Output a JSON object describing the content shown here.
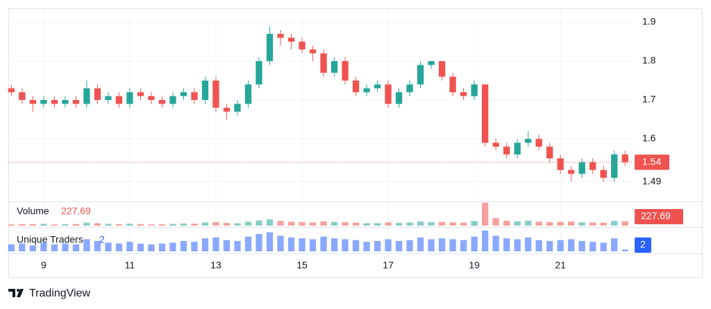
{
  "chart_data": {
    "type": "candlestick",
    "x": [
      8.25,
      8.5,
      8.75,
      9,
      9.25,
      9.5,
      9.75,
      10,
      10.25,
      10.5,
      10.75,
      11,
      11.25,
      11.5,
      11.75,
      12,
      12.25,
      12.5,
      12.75,
      13,
      13.25,
      13.5,
      13.75,
      14,
      14.25,
      14.5,
      14.75,
      15,
      15.25,
      15.5,
      15.75,
      16,
      16.25,
      16.5,
      16.75,
      17,
      17.25,
      17.5,
      17.75,
      18,
      18.25,
      18.5,
      18.75,
      19,
      19.25,
      19.5,
      19.75,
      20,
      20.25,
      20.5,
      20.75,
      21,
      21.25,
      21.5,
      21.75,
      22,
      22.25,
      22.5
    ],
    "open": [
      1.73,
      1.72,
      1.7,
      1.69,
      1.7,
      1.69,
      1.7,
      1.69,
      1.73,
      1.7,
      1.71,
      1.69,
      1.72,
      1.71,
      1.7,
      1.69,
      1.71,
      1.72,
      1.7,
      1.75,
      1.68,
      1.67,
      1.69,
      1.74,
      1.8,
      1.87,
      1.86,
      1.85,
      1.83,
      1.82,
      1.77,
      1.8,
      1.75,
      1.72,
      1.73,
      1.74,
      1.69,
      1.72,
      1.74,
      1.79,
      1.8,
      1.76,
      1.72,
      1.71,
      1.74,
      1.59,
      1.58,
      1.56,
      1.59,
      1.6,
      1.58,
      1.55,
      1.52,
      1.51,
      1.54,
      1.52,
      1.5,
      1.56
    ],
    "high": [
      1.74,
      1.73,
      1.71,
      1.71,
      1.71,
      1.71,
      1.71,
      1.75,
      1.74,
      1.72,
      1.72,
      1.73,
      1.73,
      1.72,
      1.71,
      1.72,
      1.73,
      1.73,
      1.76,
      1.76,
      1.69,
      1.7,
      1.75,
      1.81,
      1.89,
      1.88,
      1.87,
      1.86,
      1.84,
      1.83,
      1.81,
      1.81,
      1.76,
      1.74,
      1.75,
      1.75,
      1.73,
      1.75,
      1.8,
      1.8,
      1.8,
      1.77,
      1.73,
      1.75,
      1.74,
      1.6,
      1.59,
      1.6,
      1.62,
      1.61,
      1.59,
      1.56,
      1.53,
      1.55,
      1.55,
      1.53,
      1.57,
      1.57
    ],
    "low": [
      1.71,
      1.69,
      1.67,
      1.68,
      1.68,
      1.68,
      1.68,
      1.68,
      1.69,
      1.69,
      1.68,
      1.68,
      1.7,
      1.69,
      1.68,
      1.68,
      1.7,
      1.69,
      1.69,
      1.67,
      1.65,
      1.66,
      1.68,
      1.73,
      1.79,
      1.84,
      1.83,
      1.82,
      1.8,
      1.76,
      1.76,
      1.74,
      1.71,
      1.71,
      1.72,
      1.68,
      1.68,
      1.71,
      1.73,
      1.78,
      1.75,
      1.71,
      1.7,
      1.7,
      1.58,
      1.57,
      1.55,
      1.55,
      1.58,
      1.57,
      1.54,
      1.51,
      1.49,
      1.5,
      1.51,
      1.49,
      1.49,
      1.53
    ],
    "close": [
      1.72,
      1.7,
      1.69,
      1.7,
      1.69,
      1.7,
      1.69,
      1.73,
      1.7,
      1.71,
      1.69,
      1.72,
      1.71,
      1.7,
      1.69,
      1.71,
      1.72,
      1.7,
      1.75,
      1.68,
      1.67,
      1.69,
      1.74,
      1.8,
      1.87,
      1.86,
      1.85,
      1.83,
      1.82,
      1.77,
      1.8,
      1.75,
      1.72,
      1.73,
      1.74,
      1.69,
      1.72,
      1.74,
      1.79,
      1.8,
      1.76,
      1.72,
      1.71,
      1.74,
      1.59,
      1.58,
      1.56,
      1.59,
      1.6,
      1.58,
      1.55,
      1.52,
      1.51,
      1.54,
      1.52,
      1.5,
      1.56,
      1.54
    ],
    "up_color": "#26a69a",
    "down_color": "#ef5350",
    "xlim": [
      8.18,
      22.69
    ],
    "xticks": [
      9,
      11,
      13,
      15,
      17,
      19,
      21
    ],
    "ylim": [
      1.4393,
      1.9357
    ],
    "yticks": [
      1.9,
      1.8,
      1.7,
      1.6,
      1.49
    ],
    "grid": true,
    "last_price": 1.54,
    "volume": {
      "name": "Volume",
      "color": "#ef5350",
      "values": [
        60,
        80,
        70,
        90,
        60,
        70,
        80,
        150,
        120,
        90,
        70,
        100,
        80,
        60,
        70,
        90,
        110,
        100,
        160,
        180,
        140,
        120,
        200,
        260,
        320,
        240,
        200,
        180,
        160,
        220,
        190,
        170,
        150,
        120,
        130,
        170,
        140,
        160,
        210,
        180,
        190,
        170,
        150,
        230,
        1150,
        380,
        250,
        220,
        260,
        200,
        180,
        190,
        210,
        170,
        160,
        150,
        240,
        227.69
      ]
    },
    "traders": {
      "name": "Unique Traders",
      "color": "#2962ff",
      "values": [
        8,
        9,
        7,
        10,
        8,
        9,
        8,
        14,
        12,
        10,
        9,
        11,
        9,
        8,
        9,
        10,
        12,
        11,
        15,
        16,
        13,
        12,
        17,
        20,
        22,
        18,
        16,
        15,
        14,
        17,
        15,
        14,
        13,
        11,
        12,
        14,
        12,
        13,
        16,
        14,
        15,
        14,
        13,
        17,
        24,
        18,
        15,
        14,
        16,
        13,
        12,
        13,
        14,
        12,
        11,
        10,
        15,
        2
      ]
    }
  },
  "footer": {
    "brand": "TradingView"
  }
}
